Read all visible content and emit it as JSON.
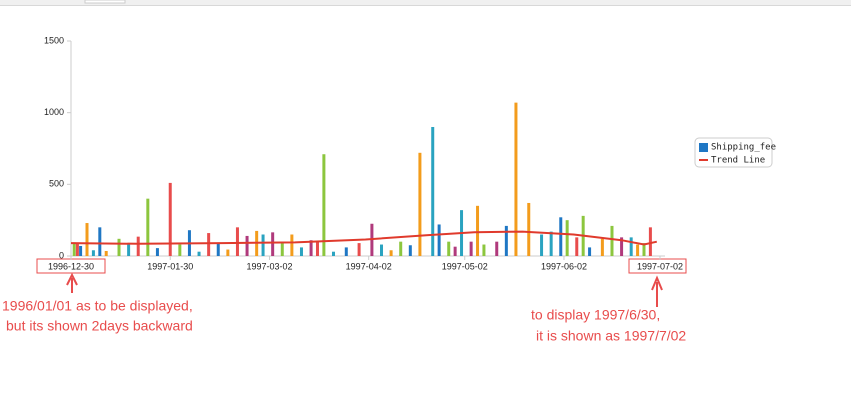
{
  "chart_data": {
    "type": "bar",
    "x": [
      "1996-12-31",
      "1997-01-01",
      "1997-01-02",
      "1997-01-04",
      "1997-01-06",
      "1997-01-08",
      "1997-01-10",
      "1997-01-14",
      "1997-01-17",
      "1997-01-20",
      "1997-01-23",
      "1997-01-26",
      "1997-01-30",
      "1997-02-02",
      "1997-02-05",
      "1997-02-08",
      "1997-02-11",
      "1997-02-14",
      "1997-02-17",
      "1997-02-20",
      "1997-02-23",
      "1997-02-26",
      "1997-02-28",
      "1997-03-03",
      "1997-03-06",
      "1997-03-09",
      "1997-03-12",
      "1997-03-15",
      "1997-03-17",
      "1997-03-19",
      "1997-03-22",
      "1997-03-26",
      "1997-03-30",
      "1997-04-03",
      "1997-04-06",
      "1997-04-09",
      "1997-04-12",
      "1997-04-15",
      "1997-04-18",
      "1997-04-22",
      "1997-04-24",
      "1997-04-27",
      "1997-04-29",
      "1997-05-01",
      "1997-05-04",
      "1997-05-06",
      "1997-05-08",
      "1997-05-12",
      "1997-05-15",
      "1997-05-18",
      "1997-05-22",
      "1997-05-26",
      "1997-05-29",
      "1997-06-01",
      "1997-06-03",
      "1997-06-06",
      "1997-06-08",
      "1997-06-10",
      "1997-06-14",
      "1997-06-17",
      "1997-06-20",
      "1997-06-23",
      "1997-06-25",
      "1997-06-27",
      "1997-06-29"
    ],
    "series": [
      {
        "name": "Shipping_fee",
        "color": "#1f77c4",
        "values": [
          95,
          85,
          70,
          230,
          40,
          200,
          35,
          120,
          90,
          135,
          400,
          55,
          510,
          80,
          180,
          30,
          160,
          85,
          45,
          200,
          140,
          175,
          150,
          165,
          100,
          150,
          60,
          110,
          100,
          710,
          30,
          60,
          90,
          225,
          80,
          40,
          100,
          75,
          720,
          900,
          220,
          100,
          65,
          320,
          100,
          350,
          80,
          100,
          210,
          1070,
          370,
          150,
          170,
          270,
          250,
          130,
          280,
          60,
          120,
          210,
          130,
          130,
          80,
          90,
          200
        ],
        "colors": [
          "#8cc63e",
          "#e84c4c",
          "#1f77c4",
          "#f39c1c",
          "#2aa3c0",
          "#1f77c4",
          "#f39c1c",
          "#8cc63e",
          "#2aa3c0",
          "#e84c4c",
          "#8cc63e",
          "#1f77c4",
          "#e84c4c",
          "#8cc63e",
          "#1f77c4",
          "#2aa3c0",
          "#e84c4c",
          "#1f77c4",
          "#f39c1c",
          "#e84c4c",
          "#b03a7c",
          "#f39c1c",
          "#2aa3c0",
          "#b03a7c",
          "#8cc63e",
          "#f39c1c",
          "#2aa3c0",
          "#b03a7c",
          "#e84c4c",
          "#8cc63e",
          "#2aa3c0",
          "#1f77c4",
          "#e84c4c",
          "#b03a7c",
          "#2aa3c0",
          "#f39c1c",
          "#8cc63e",
          "#1f77c4",
          "#f39c1c",
          "#2aa3c0",
          "#1f77c4",
          "#8cc63e",
          "#b03a7c",
          "#2aa3c0",
          "#b03a7c",
          "#f39c1c",
          "#8cc63e",
          "#b03a7c",
          "#1f77c4",
          "#f39c1c",
          "#f39c1c",
          "#2aa3c0",
          "#2aa3c0",
          "#1f77c4",
          "#8cc63e",
          "#e84c4c",
          "#8cc63e",
          "#1f77c4",
          "#f39c1c",
          "#8cc63e",
          "#b03a7c",
          "#2aa3c0",
          "#f39c1c",
          "#8cc63e",
          "#e84c4c"
        ]
      },
      {
        "name": "Trend Line",
        "type": "line",
        "color": "#e03a2c",
        "x": [
          "1996-12-30",
          "1997-01-20",
          "1997-02-15",
          "1997-03-10",
          "1997-04-01",
          "1997-04-20",
          "1997-05-05",
          "1997-05-20",
          "1997-06-05",
          "1997-06-20",
          "1997-06-27",
          "1997-07-01"
        ],
        "values": [
          90,
          85,
          90,
          95,
          115,
          145,
          165,
          170,
          150,
          110,
          80,
          100
        ]
      }
    ],
    "xlim": [
      "1996-12-30",
      "1997-07-02"
    ],
    "xticks": [
      "1996-12-30",
      "1997-01-30",
      "1997-03-02",
      "1997-04-02",
      "1997-05-02",
      "1997-06-02",
      "1997-07-02"
    ],
    "ylim": [
      0,
      1500
    ],
    "yticks": [
      0,
      500,
      1000,
      1500
    ],
    "legend": "right",
    "annotations": [
      [
        "1996/01/01 as to be displayed,",
        "but its shown 2days backward"
      ],
      [
        "to display 1997/6/30,",
        "it is shown as 1997/7/02"
      ]
    ]
  }
}
